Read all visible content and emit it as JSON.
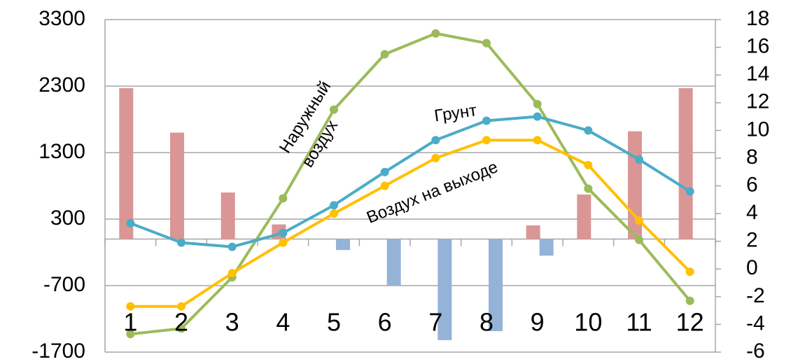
{
  "chart_data": {
    "type": "bar-line",
    "categories": [
      "1",
      "2",
      "3",
      "4",
      "5",
      "6",
      "7",
      "8",
      "9",
      "10",
      "11",
      "12"
    ],
    "series": [
      {
        "type": "bar",
        "color": "#d99694",
        "values": [
          2270,
          1600,
          700,
          220,
          0,
          0,
          0,
          0,
          205,
          670,
          1620,
          2270
        ]
      },
      {
        "type": "bar",
        "color": "#95b3d7",
        "values": [
          0,
          0,
          0,
          0,
          -165,
          -700,
          -1520,
          -1385,
          -250,
          0,
          0,
          0
        ]
      },
      {
        "type": "line",
        "axis": "y2",
        "color": "#9bbb59",
        "values": [
          -4.7,
          -4.3,
          -0.6,
          5.1,
          11.5,
          15.5,
          17.0,
          16.3,
          11.9,
          5.8,
          2.1,
          -2.3
        ]
      },
      {
        "type": "line",
        "axis": "y2",
        "color": "#4bacc6",
        "values": [
          3.3,
          1.9,
          1.6,
          2.6,
          4.6,
          7.0,
          9.3,
          10.7,
          11.0,
          10.0,
          7.9,
          5.6
        ]
      },
      {
        "type": "line",
        "axis": "y2",
        "color": "#ffc000",
        "values": [
          -2.7,
          -2.7,
          -0.3,
          1.9,
          4.0,
          6.0,
          8.0,
          9.3,
          9.3,
          7.5,
          3.5,
          -0.2
        ]
      }
    ],
    "annotations": [
      "Наружный",
      "воздух",
      "Грунт",
      "Воздух на выходе"
    ],
    "ylim": [
      -1700,
      3300
    ],
    "yticks": [
      3300,
      2300,
      1300,
      300,
      -700,
      -1700
    ],
    "y2lim": [
      -6,
      18
    ],
    "y2ticks": [
      18,
      16,
      14,
      12,
      10,
      8,
      6,
      4,
      2,
      0,
      -2,
      -4,
      -6
    ],
    "grid": true
  }
}
